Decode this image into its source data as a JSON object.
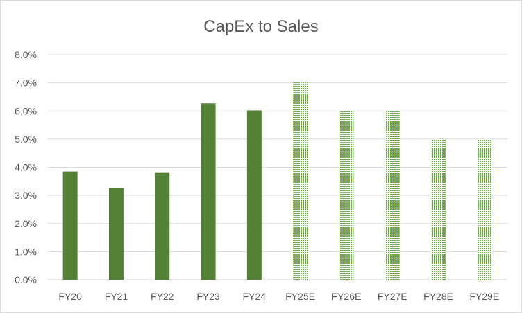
{
  "chart_data": {
    "type": "bar",
    "title": "CapEx to Sales",
    "xlabel": "",
    "ylabel": "",
    "categories": [
      "FY20",
      "FY21",
      "FY22",
      "FY23",
      "FY24",
      "FY25E",
      "FY26E",
      "FY27E",
      "FY28E",
      "FY29E"
    ],
    "values": [
      3.85,
      3.25,
      3.8,
      6.27,
      6.02,
      7.02,
      6.0,
      6.0,
      5.0,
      5.0
    ],
    "estimate": [
      false,
      false,
      false,
      false,
      false,
      true,
      true,
      true,
      true,
      true
    ],
    "ylim": [
      0,
      8
    ],
    "yticks": [
      "0.0%",
      "1.0%",
      "2.0%",
      "3.0%",
      "4.0%",
      "5.0%",
      "6.0%",
      "7.0%",
      "8.0%"
    ],
    "grid": true,
    "legend": "none",
    "colors": {
      "actual": "#538135",
      "estimate_pattern": "#70ad47"
    }
  }
}
